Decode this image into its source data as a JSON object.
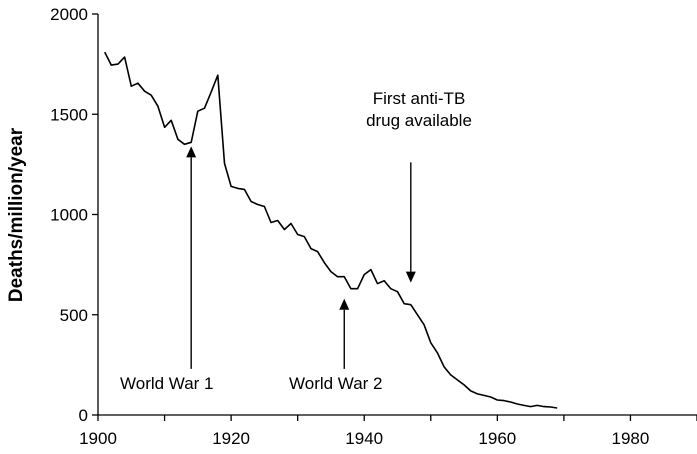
{
  "chart_data": {
    "type": "line",
    "title": "",
    "xlabel": "",
    "ylabel": "Deaths/million/year",
    "xlim": [
      1900,
      1990
    ],
    "ylim": [
      0,
      2000
    ],
    "x_ticks": [
      1900,
      1920,
      1940,
      1960,
      1980
    ],
    "y_ticks": [
      0,
      500,
      1000,
      1500,
      2000
    ],
    "grid": false,
    "legend": "none",
    "series": [
      {
        "color": "#000000",
        "points": [
          [
            1901,
            1810
          ],
          [
            1902,
            1745
          ],
          [
            1903,
            1750
          ],
          [
            1904,
            1785
          ],
          [
            1905,
            1640
          ],
          [
            1906,
            1655
          ],
          [
            1907,
            1615
          ],
          [
            1908,
            1595
          ],
          [
            1909,
            1540
          ],
          [
            1910,
            1435
          ],
          [
            1911,
            1470
          ],
          [
            1912,
            1375
          ],
          [
            1913,
            1350
          ],
          [
            1914,
            1360
          ],
          [
            1915,
            1515
          ],
          [
            1916,
            1530
          ],
          [
            1917,
            1610
          ],
          [
            1918,
            1695
          ],
          [
            1919,
            1255
          ],
          [
            1920,
            1140
          ],
          [
            1921,
            1130
          ],
          [
            1922,
            1125
          ],
          [
            1923,
            1065
          ],
          [
            1924,
            1050
          ],
          [
            1925,
            1040
          ],
          [
            1926,
            960
          ],
          [
            1927,
            970
          ],
          [
            1928,
            925
          ],
          [
            1929,
            955
          ],
          [
            1930,
            900
          ],
          [
            1931,
            890
          ],
          [
            1932,
            830
          ],
          [
            1933,
            815
          ],
          [
            1934,
            760
          ],
          [
            1935,
            715
          ],
          [
            1936,
            690
          ],
          [
            1937,
            690
          ],
          [
            1938,
            630
          ],
          [
            1939,
            630
          ],
          [
            1940,
            700
          ],
          [
            1941,
            725
          ],
          [
            1942,
            655
          ],
          [
            1943,
            670
          ],
          [
            1944,
            630
          ],
          [
            1945,
            615
          ],
          [
            1946,
            555
          ],
          [
            1947,
            550
          ],
          [
            1948,
            500
          ],
          [
            1949,
            450
          ],
          [
            1950,
            360
          ],
          [
            1951,
            310
          ],
          [
            1952,
            240
          ],
          [
            1953,
            200
          ],
          [
            1954,
            175
          ],
          [
            1955,
            150
          ],
          [
            1956,
            120
          ],
          [
            1957,
            105
          ],
          [
            1958,
            98
          ],
          [
            1959,
            90
          ],
          [
            1960,
            75
          ],
          [
            1961,
            72
          ],
          [
            1962,
            65
          ],
          [
            1963,
            55
          ],
          [
            1964,
            48
          ],
          [
            1965,
            42
          ],
          [
            1966,
            48
          ],
          [
            1967,
            42
          ],
          [
            1968,
            40
          ],
          [
            1969,
            35
          ]
        ]
      }
    ],
    "annotations": [
      {
        "text": "World War 1",
        "arrow_x": 1914,
        "arrow_from_y": 230,
        "arrow_to_y": 1340
      },
      {
        "text": "World War 2",
        "arrow_x": 1937,
        "arrow_from_y": 230,
        "arrow_to_y": 580
      },
      {
        "text_lines": [
          "First anti-TB",
          "drug available"
        ],
        "arrow_x": 1947,
        "arrow_from_y": 1260,
        "arrow_to_y": 660
      }
    ]
  }
}
